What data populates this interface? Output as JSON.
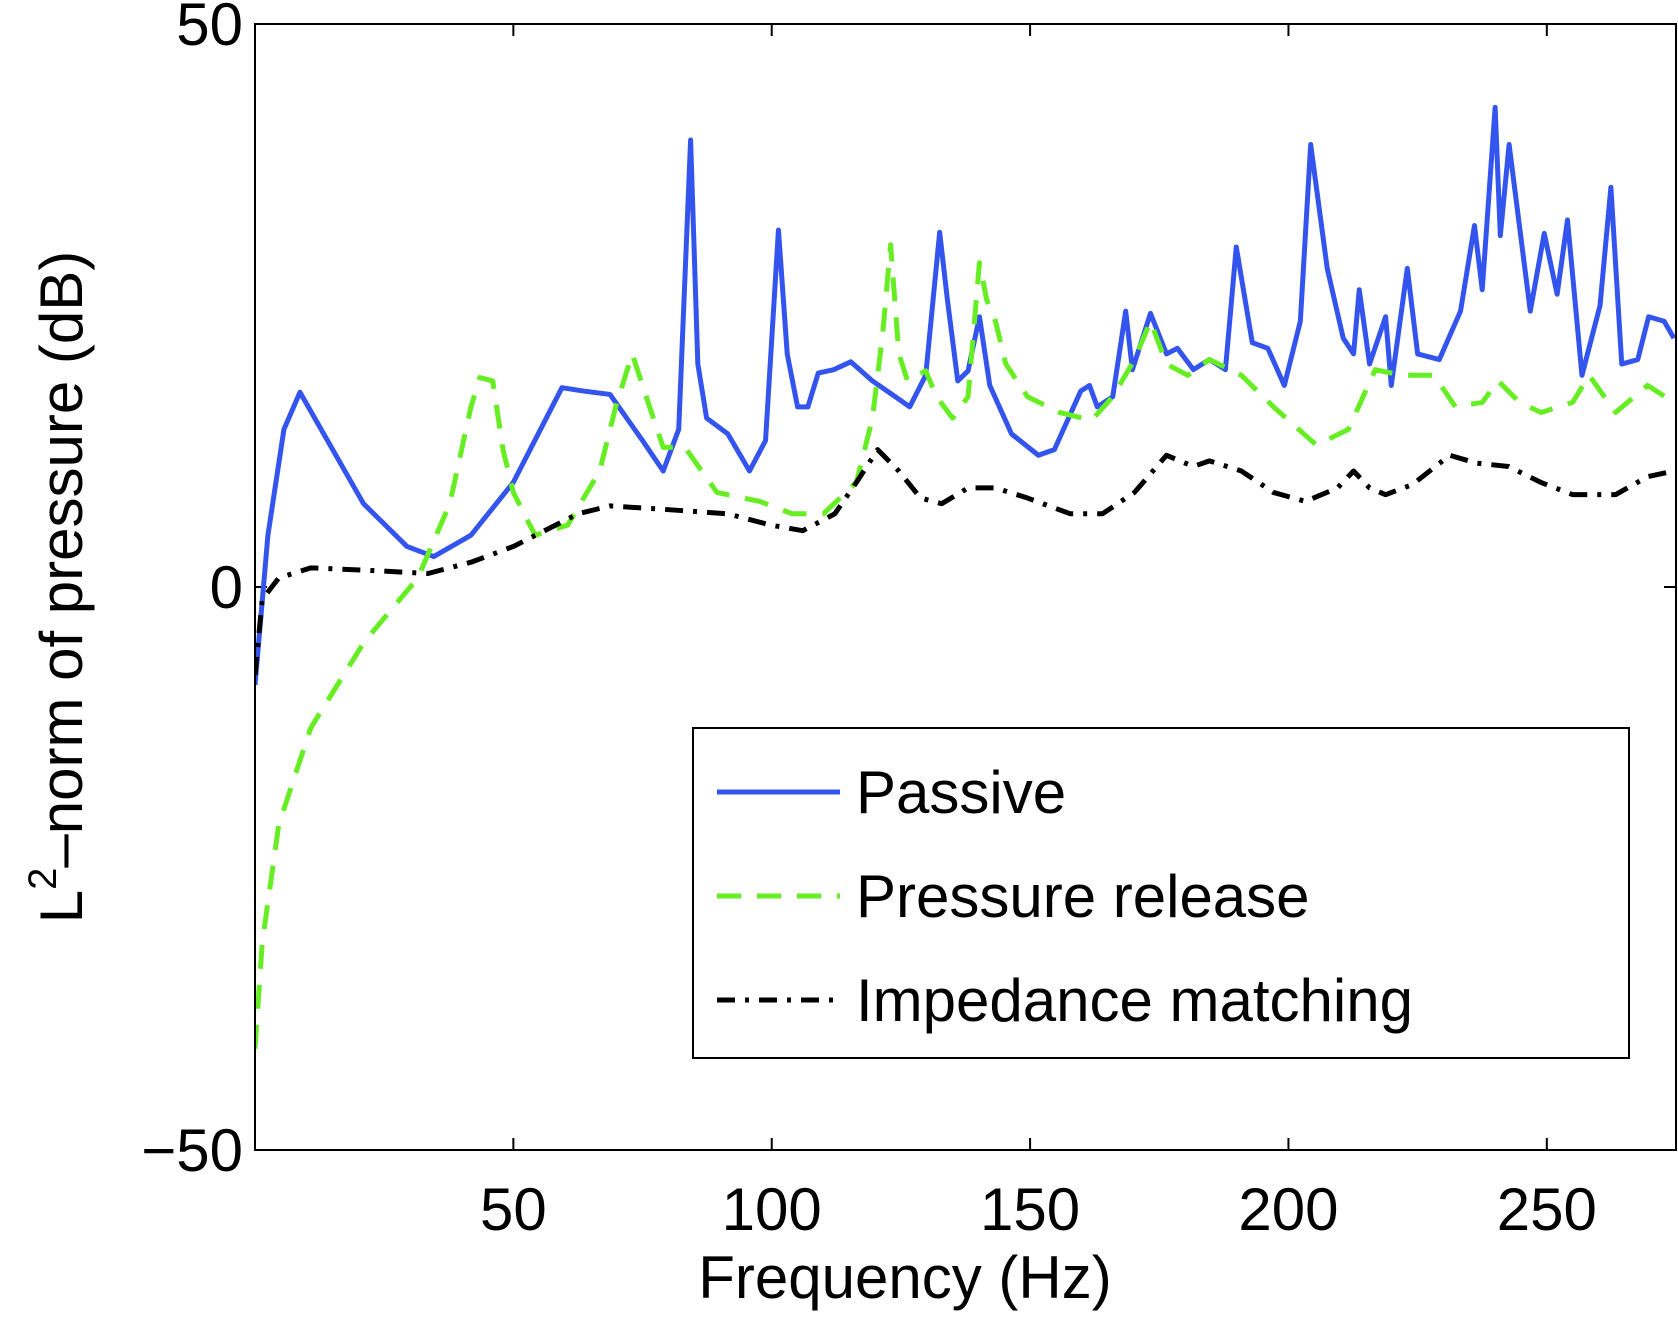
{
  "chart_data": {
    "type": "line",
    "xlabel": "Frequency (Hz)",
    "ylabel": {
      "base": "L",
      "sup": "2",
      "rest": "–norm of pressure (dB)"
    },
    "xlim": [
      0,
      275
    ],
    "ylim": [
      -50,
      50
    ],
    "xticks": [
      50,
      100,
      150,
      200,
      250
    ],
    "yticks": [
      {
        "value": -50,
        "label": "−50"
      },
      0,
      50
    ],
    "grid": false,
    "legend": "lower right",
    "series": [
      {
        "name": "Passive",
        "color": "#3355ee",
        "style": "solid",
        "x": [
          0,
          2.5,
          5.6,
          8.7,
          12.8,
          21,
          29.4,
          34.6,
          41.8,
          50,
          59.4,
          63.6,
          68.7,
          75,
          79,
          82,
          84.3,
          85.7,
          87.4,
          91.5,
          95.7,
          98.8,
          101.3,
          103,
          105,
          107,
          109,
          112,
          115.3,
          119.5,
          123.6,
          126.7,
          129.8,
          132.5,
          134,
          136,
          138,
          140.2,
          142.2,
          146.4,
          151.6,
          154.7,
          159.8,
          161.5,
          163,
          166,
          168.5,
          169.8,
          173.3,
          176.4,
          178.5,
          181.6,
          184.7,
          187.8,
          189.9,
          193,
          196,
          199.2,
          202.3,
          204.3,
          207.5,
          210.6,
          212.6,
          213.7,
          215.7,
          218.8,
          219.9,
          223,
          225,
          229.2,
          233.3,
          236,
          237.5,
          240,
          241,
          242.7,
          246.8,
          249.5,
          252,
          254,
          256.8,
          260.3,
          262.4,
          264.5,
          267.6,
          269.7,
          272.7,
          274.6
        ],
        "values": [
          -8.7,
          4.6,
          14,
          17.3,
          14,
          7.4,
          3.6,
          2.7,
          4.6,
          9.3,
          17.7,
          17.4,
          17.1,
          13,
          10.3,
          14,
          39.7,
          19.8,
          15,
          13.6,
          10.3,
          13,
          31.7,
          20.7,
          16,
          16,
          19,
          19.3,
          20,
          18.3,
          17,
          16,
          18.8,
          31.5,
          25.5,
          18.3,
          19.2,
          24,
          17.9,
          13.6,
          11.7,
          12.2,
          17.4,
          17.9,
          16,
          16.9,
          24.5,
          19.3,
          24.3,
          20.7,
          21.2,
          19.3,
          20.2,
          19.3,
          30.2,
          21.7,
          21.2,
          17.9,
          23.6,
          39.3,
          28.3,
          22.1,
          20.7,
          26.4,
          19.8,
          24,
          17.9,
          28.3,
          20.7,
          20.2,
          24.5,
          32.1,
          26.4,
          42.6,
          31.2,
          39.3,
          24.5,
          31.4,
          26,
          32.6,
          18.8,
          25,
          35.5,
          19.8,
          20.2,
          24,
          23.6,
          22.1
        ]
      },
      {
        "name": "Pressure release",
        "color": "#66ee22",
        "style": "dashed",
        "x": [
          0,
          1.4,
          4.6,
          10.8,
          21.1,
          31.5,
          37.7,
          41.8,
          43.5,
          46,
          48,
          50,
          54.2,
          60.5,
          66.7,
          69.8,
          73,
          76,
          79,
          83.2,
          89.4,
          97.7,
          104,
          110,
          116.4,
          119.5,
          121.5,
          123,
          124.6,
          126.3,
          129.8,
          131.9,
          135,
          138,
          140.2,
          141.6,
          143.3,
          145.3,
          149.5,
          155.7,
          161.9,
          166,
          170.2,
          173.3,
          176.4,
          180.5,
          184.7,
          190.9,
          197.1,
          205.4,
          211.6,
          216.8,
          222,
          228.2,
          232.3,
          237.5,
          240.6,
          244.7,
          248.9,
          255,
          258.2,
          263.3,
          269.5,
          274.6
        ],
        "values": [
          -41,
          -31.6,
          -21.1,
          -12.5,
          -4.9,
          0.8,
          7.4,
          16,
          18.6,
          18.3,
          12.2,
          8.4,
          4.6,
          5.5,
          10.3,
          16,
          20.7,
          16.5,
          12.4,
          12.4,
          8.4,
          7.6,
          6.5,
          6.5,
          9.3,
          15,
          22.6,
          30.4,
          20.7,
          18.3,
          19.2,
          16.9,
          15,
          16.9,
          28.8,
          25.5,
          23.6,
          19.8,
          16.9,
          15.5,
          14.8,
          16.9,
          20.2,
          23.6,
          19.8,
          18.8,
          20.2,
          18.8,
          16,
          12.6,
          14,
          19.3,
          18.8,
          18.8,
          16,
          16.4,
          18.3,
          16.4,
          15.5,
          16.4,
          18.8,
          15.5,
          17.9,
          16.4
        ]
      },
      {
        "name": "Impedance matching",
        "color": "#000000",
        "style": "dashdot",
        "x": [
          0,
          1.4,
          4.6,
          10.8,
          21.1,
          33.5,
          41.8,
          50,
          62.5,
          68.7,
          79,
          91.5,
          99.8,
          106,
          112.2,
          116.4,
          120.5,
          124.6,
          128.8,
          132.9,
          138,
          143.3,
          149.5,
          157.8,
          164,
          170.2,
          176.4,
          181.6,
          184.7,
          190.9,
          197.1,
          203.3,
          209.5,
          212.6,
          215.7,
          218.8,
          224,
          231.2,
          236.4,
          242.6,
          248.8,
          255,
          263.3,
          269.5,
          274.6
        ],
        "values": [
          -7.8,
          -1.1,
          0.8,
          1.7,
          1.5,
          1.2,
          2.2,
          3.6,
          6.5,
          7.2,
          6.9,
          6.5,
          5.5,
          5,
          6.5,
          9.3,
          12.2,
          10.3,
          7.9,
          7.4,
          8.8,
          8.8,
          7.9,
          6.5,
          6.5,
          8.4,
          11.7,
          10.7,
          11.2,
          10.3,
          8.4,
          7.6,
          8.8,
          10.3,
          8.8,
          8.2,
          9.1,
          11.7,
          11,
          10.7,
          9.3,
          8.2,
          8.2,
          9.8,
          10.3
        ]
      }
    ]
  }
}
